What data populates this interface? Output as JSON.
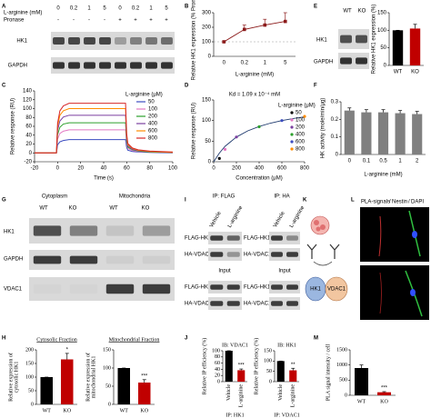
{
  "panel_letters": [
    "A",
    "B",
    "C",
    "D",
    "E",
    "F",
    "G",
    "H",
    "I",
    "J",
    "K",
    "L",
    "M"
  ],
  "blot_a": {
    "label": "L-arginine (mM)",
    "doses": [
      "0",
      "0.2",
      "1",
      "5",
      "0",
      "0.2",
      "1",
      "5"
    ],
    "pronase_label": "Pronase",
    "pronase": [
      "-",
      "-",
      "-",
      "-",
      "+",
      "+",
      "+",
      "+"
    ],
    "rows": [
      "HK1",
      "GAPDH"
    ]
  },
  "blot_e": {
    "lanes": [
      "WT",
      "KO"
    ],
    "rows": [
      "HK1",
      "GAPDH"
    ]
  },
  "blot_g": {
    "groups": [
      "Cytoplasm",
      "Mitochondria"
    ],
    "lanes": [
      "WT",
      "KO",
      "WT",
      "KO"
    ],
    "rows": [
      "HK1",
      "GAPDH",
      "VDAC1"
    ]
  },
  "blot_i": {
    "groups": [
      "IP: FLAG",
      "IP: HA"
    ],
    "lanes": [
      "Vehicle",
      "L-arginine",
      "Vehicle",
      "L-arginine"
    ],
    "ip_flag_rows": [
      "FLAG-HK1",
      "HA-VDAC1"
    ],
    "ip_ha_rows": [
      "FLAG-HK1",
      "HA-VDAC1"
    ],
    "input_labels": [
      "Input",
      "Input"
    ],
    "input_flag_rows": [
      "FLAG-HK1",
      "HA-VDAC1"
    ],
    "input_ha_rows": [
      "FLAG-HK1",
      "HA-VDAC1"
    ]
  },
  "diagram_k": {
    "nodes": [
      "HK1",
      "VDAC1"
    ]
  },
  "image_l": {
    "channels": [
      "PLA-signals",
      "Nestin",
      "DAPI"
    ],
    "channel_separators": [
      "/",
      "/"
    ],
    "rows": [
      "WT",
      "KO"
    ]
  },
  "chart_data": [
    {
      "type": "line",
      "categories": [
        "0",
        "0.2",
        "1",
        "5"
      ],
      "x_label": "L-arginine (mM)",
      "y_label": "Relative HK1 expression (% Pronase)",
      "ylim": [
        0,
        300
      ],
      "yticks": [
        0,
        100,
        200,
        300
      ],
      "reference_line": 100,
      "series": [
        {
          "color": "#8b1a1a",
          "values": [
            100,
            185,
            215,
            240
          ],
          "errors": [
            0,
            30,
            40,
            60
          ]
        }
      ]
    },
    {
      "type": "line",
      "x": [
        -20,
        -10,
        -1,
        0,
        2,
        5,
        10,
        20,
        40,
        59,
        60,
        61,
        65,
        70,
        80,
        100
      ],
      "xlim": [
        -20,
        100
      ],
      "xticks": [
        -20,
        0,
        20,
        40,
        60,
        80,
        100
      ],
      "ylim": [
        -20,
        140
      ],
      "yticks": [
        -20,
        0,
        20,
        40,
        60,
        80,
        100,
        120,
        140
      ],
      "x_label": "Time (s)",
      "y_label": "Relative response (RU)",
      "legend_title": "L-arginine (μM)",
      "series": [
        {
          "name": "50",
          "color": "#3b4cc0",
          "values": [
            0,
            0,
            0,
            18,
            25,
            28,
            30,
            30,
            30,
            30,
            12,
            6,
            3,
            2,
            1,
            0
          ]
        },
        {
          "name": "100",
          "color": "#e377c2",
          "values": [
            0,
            0,
            0,
            31,
            44,
            49,
            52,
            52,
            52,
            52,
            20,
            10,
            5,
            3,
            2,
            1
          ]
        },
        {
          "name": "200",
          "color": "#2ca02c",
          "values": [
            0,
            0,
            0,
            41,
            58,
            65,
            68,
            68,
            68,
            68,
            26,
            13,
            7,
            4,
            2,
            1
          ]
        },
        {
          "name": "400",
          "color": "#7b3fa0",
          "values": [
            0,
            0,
            0,
            51,
            72,
            81,
            85,
            85,
            85,
            85,
            33,
            16,
            8,
            5,
            3,
            1
          ]
        },
        {
          "name": "600",
          "color": "#ff8c00",
          "values": [
            0,
            0,
            0,
            60,
            85,
            95,
            100,
            100,
            100,
            100,
            38,
            19,
            10,
            6,
            3,
            1
          ]
        },
        {
          "name": "800",
          "color": "#d62728",
          "values": [
            0,
            0,
            0,
            67,
            95,
            106,
            112,
            112,
            112,
            112,
            43,
            21,
            11,
            7,
            4,
            2
          ]
        }
      ]
    },
    {
      "type": "scatter",
      "annotation": "Kd = 1.09 x 10⁻⁴ mM",
      "xlim": [
        0,
        800
      ],
      "xticks": [
        0,
        200,
        400,
        600,
        800
      ],
      "ylim": [
        0,
        150
      ],
      "yticks": [
        0,
        50,
        100,
        150
      ],
      "x_label": "Concentration (μM)",
      "y_label": "Relative response (RU)",
      "legend_title": "L-arginine (μM)",
      "fit": {
        "color": "#1f3a6e",
        "x": [
          0,
          50,
          100,
          200,
          300,
          400,
          500,
          600,
          700,
          800
        ],
        "values": [
          0,
          21,
          37.5,
          60,
          75,
          85.7,
          93.75,
          100,
          105,
          109
        ]
      },
      "series": [
        {
          "name": "50",
          "color": "#000000",
          "x": [
            50
          ],
          "values": [
            8
          ]
        },
        {
          "name": "100",
          "color": "#e377c2",
          "x": [
            100
          ],
          "values": [
            30
          ]
        },
        {
          "name": "200",
          "color": "#7b3fa0",
          "x": [
            200
          ],
          "values": [
            60
          ]
        },
        {
          "name": "400",
          "color": "#2ca02c",
          "x": [
            400
          ],
          "values": [
            85
          ]
        },
        {
          "name": "600",
          "color": "#3b4cc0",
          "x": [
            600
          ],
          "values": [
            100
          ]
        },
        {
          "name": "800",
          "color": "#ff8c00",
          "x": [
            800
          ],
          "values": [
            110
          ]
        }
      ]
    },
    {
      "type": "bar",
      "categories": [
        "WT",
        "KO"
      ],
      "values": [
        100,
        105
      ],
      "errors": [
        0,
        12
      ],
      "colors": [
        "#000000",
        "#c00000"
      ],
      "ylim": [
        0,
        150
      ],
      "yticks": [
        0,
        50,
        100,
        150
      ],
      "y_label": "Relative HK1 expression (%)"
    },
    {
      "type": "bar",
      "categories": [
        "0",
        "0.1",
        "0.5",
        "1",
        "2"
      ],
      "values": [
        0.25,
        0.24,
        0.24,
        0.235,
        0.23
      ],
      "errors": [
        0.015,
        0.015,
        0.015,
        0.015,
        0.015
      ],
      "color": "#808080",
      "ylim": [
        0,
        0.3
      ],
      "yticks": [
        0,
        0.1,
        0.2,
        0.3
      ],
      "x_label": "L-arginine (mM)",
      "y_label": "HK activity (mole/min/μg)"
    },
    {
      "type": "bar",
      "title": "Cytosolic Fraction",
      "categories": [
        "WT",
        "KO"
      ],
      "values": [
        100,
        165
      ],
      "errors": [
        0,
        22
      ],
      "colors": [
        "#000000",
        "#c00000"
      ],
      "ylim": [
        0,
        200
      ],
      "yticks": [
        0,
        50,
        100,
        150,
        200
      ],
      "y_label": [
        "Relative expression of",
        "cytosolic HK1"
      ],
      "annotations": [
        {
          "text": "*",
          "at": "KO"
        }
      ]
    },
    {
      "type": "bar",
      "title": "Mitochondrial Fraction",
      "categories": [
        "WT",
        "KO"
      ],
      "values": [
        100,
        60
      ],
      "errors": [
        0,
        8
      ],
      "colors": [
        "#000000",
        "#c00000"
      ],
      "ylim": [
        0,
        150
      ],
      "yticks": [
        0,
        50,
        100,
        150
      ],
      "y_label": [
        "Relative expression of",
        "mitochondrial HK1"
      ],
      "annotations": [
        {
          "text": "***",
          "at": "KO"
        }
      ]
    },
    {
      "type": "bar",
      "title": "IB: VDAC1",
      "categories": [
        "Vehicle",
        "L-arginine"
      ],
      "values": [
        100,
        37
      ],
      "errors": [
        0,
        4
      ],
      "colors": [
        "#000000",
        "#c00000"
      ],
      "ylim": [
        0,
        100
      ],
      "yticks": [
        0,
        20,
        40,
        60,
        80,
        100
      ],
      "x_label": "IP: HK1",
      "y_label": "Relative IP efficiency (%)",
      "annotations": [
        {
          "text": "***",
          "at": "L-arginine"
        }
      ]
    },
    {
      "type": "bar",
      "title": "IB: HK1",
      "categories": [
        "Vehicle",
        "L-arginine"
      ],
      "values": [
        100,
        55
      ],
      "errors": [
        0,
        10
      ],
      "colors": [
        "#000000",
        "#c00000"
      ],
      "ylim": [
        0,
        150
      ],
      "yticks": [
        0,
        50,
        100,
        150
      ],
      "x_label": "IP: VDAC1",
      "y_label": "Relative IP efficiency (%)",
      "annotations": [
        {
          "text": "**",
          "at": "L-arginine"
        }
      ]
    },
    {
      "type": "bar",
      "categories": [
        "WT",
        "KO"
      ],
      "values": [
        900,
        100
      ],
      "errors": [
        100,
        20
      ],
      "colors": [
        "#000000",
        "#c00000"
      ],
      "ylim": [
        0,
        1500
      ],
      "yticks": [
        0,
        500,
        1000,
        1500
      ],
      "y_label": "PLA signal intensity / cell",
      "annotations": [
        {
          "text": "***",
          "at": "KO"
        }
      ]
    }
  ]
}
